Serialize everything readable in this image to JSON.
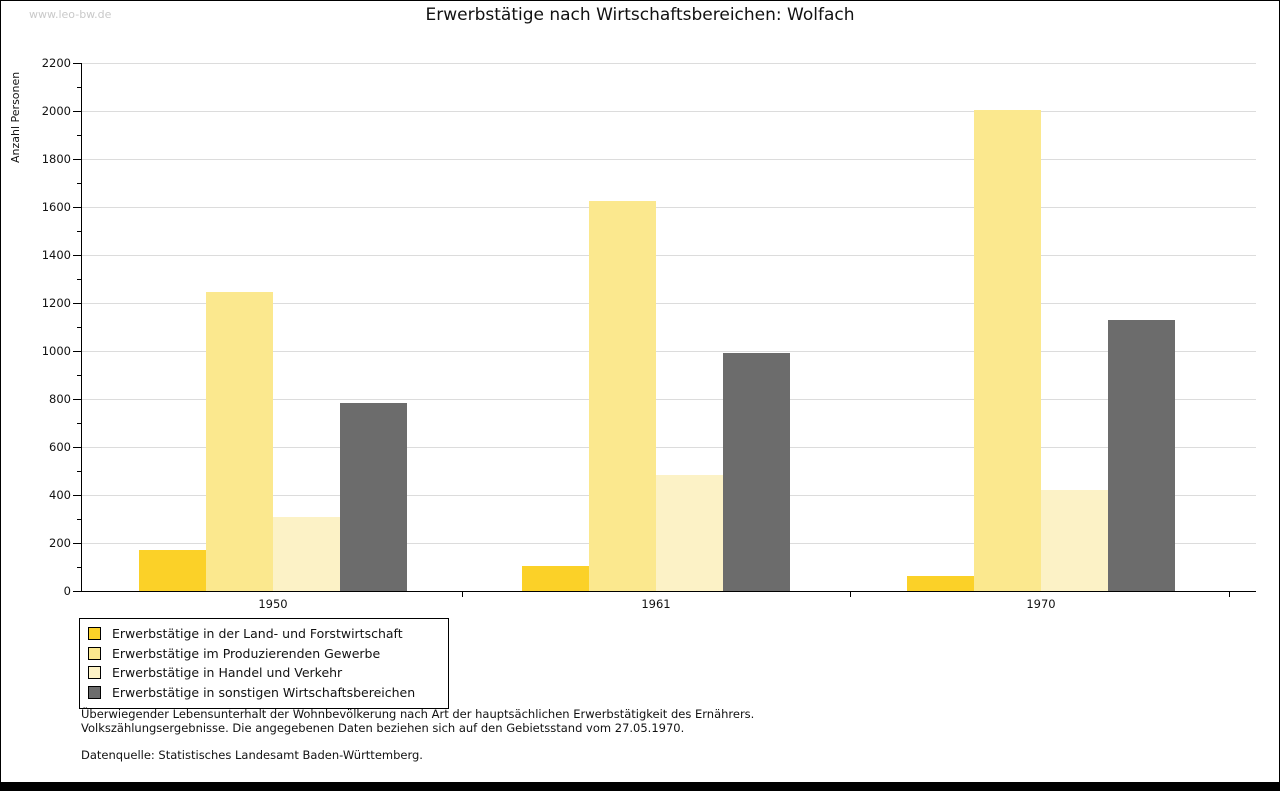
{
  "watermark": "www.leo-bw.de",
  "title": "Erwerbstätige nach Wirtschaftsbereichen: Wolfach",
  "chart_data": {
    "type": "bar",
    "title": "Erwerbstätige nach Wirtschaftsbereichen: Wolfach",
    "ylabel": "Anzahl Personen",
    "xlabel": "",
    "categories": [
      "1950",
      "1961",
      "1970"
    ],
    "series": [
      {
        "name": "Erwerbstätige in der Land- und Forstwirtschaft",
        "color": "#fbd128",
        "values": [
          170,
          105,
          62
        ]
      },
      {
        "name": "Erwerbstätige im Produzierenden Gewerbe",
        "color": "#fbe88e",
        "values": [
          1245,
          1625,
          2005
        ]
      },
      {
        "name": "Erwerbstätige in Handel und Verkehr",
        "color": "#fcf2c6",
        "values": [
          310,
          485,
          420
        ]
      },
      {
        "name": "Erwerbstätige in sonstigen Wirtschaftsbereichen",
        "color": "#6c6c6c",
        "values": [
          785,
          990,
          1130
        ]
      }
    ],
    "ylim": [
      0,
      2200
    ],
    "ytick_step": 200,
    "y_minor_step": 100,
    "grid": true,
    "grid_color": "#dcdcdc",
    "axis_color": "#000000",
    "legend_position": "bottom-left"
  },
  "footer": {
    "line1": "Überwiegender Lebensunterhalt der Wohnbevölkerung nach Art der hauptsächlichen Erwerbstätigkeit des Ernährers.",
    "line2": "Volkszählungsergebnisse. Die angegebenen Daten beziehen sich auf den Gebietsstand vom 27.05.1970.",
    "source": "Datenquelle: Statistisches Landesamt Baden-Württemberg."
  }
}
